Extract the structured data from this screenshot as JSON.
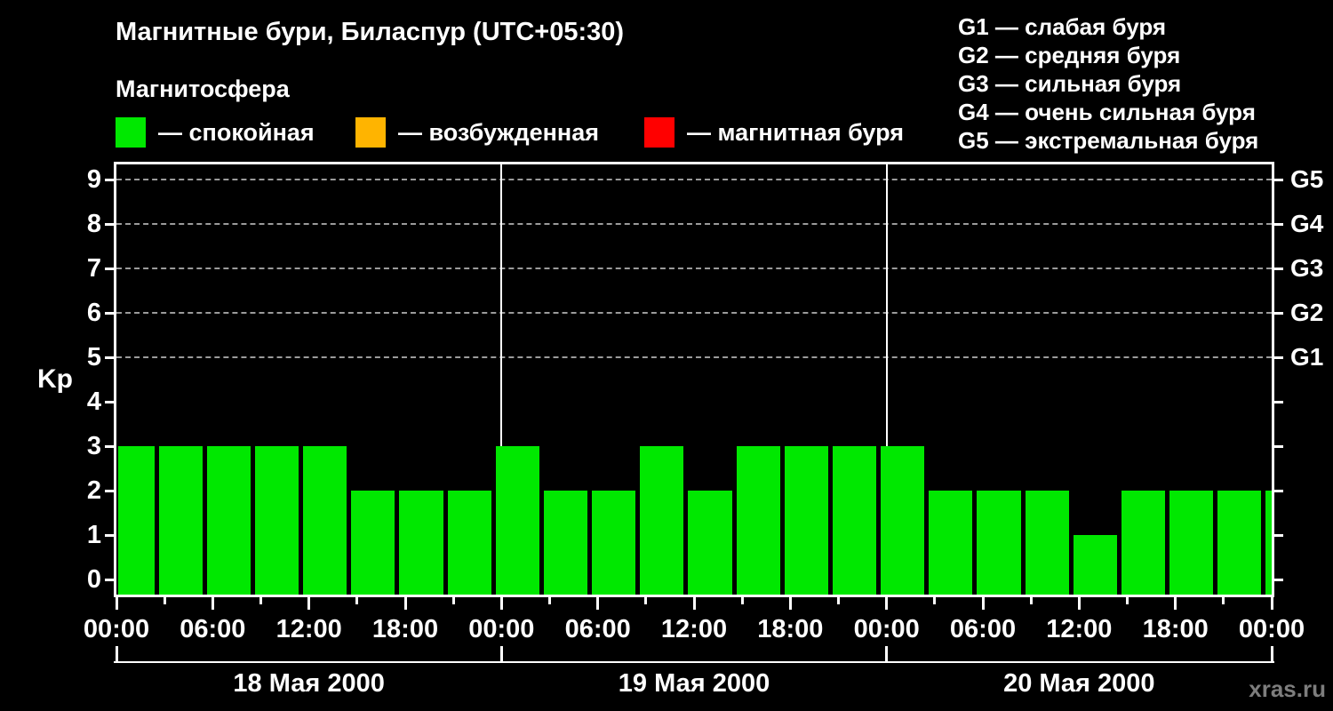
{
  "header": {
    "title": "Магнитные бури, Биласпур (UTC+05:30)",
    "subtitle": "Магнитосфера",
    "legend": [
      {
        "name": "quiet",
        "color": "#00e800",
        "label": "— спокойная"
      },
      {
        "name": "unsettled",
        "color": "#ffb400",
        "label": "— возбужденная"
      },
      {
        "name": "storm",
        "color": "#ff0000",
        "label": "— магнитная буря"
      }
    ],
    "storm_scale": [
      "G1 — слабая буря",
      "G2 — средняя буря",
      "G3 — сильная буря",
      "G4 — очень сильная буря",
      "G5 — экстремальная буря"
    ]
  },
  "watermark": "xras.ru",
  "chart_data": {
    "type": "bar",
    "title": "Магнитные бури, Биласпур (UTC+05:30)",
    "ylabel": "Kp",
    "ylim": [
      0,
      9
    ],
    "total_hours": 72,
    "bar_color": "#00e800",
    "grid": "dashed horizontal at Kp 5-9",
    "y_ticks": [
      0,
      1,
      2,
      3,
      4,
      5,
      6,
      7,
      8,
      9
    ],
    "grid_kp": [
      5,
      6,
      7,
      8,
      9
    ],
    "right_axis_labels": [
      {
        "kp": 5,
        "label": "G1"
      },
      {
        "kp": 6,
        "label": "G2"
      },
      {
        "kp": 7,
        "label": "G3"
      },
      {
        "kp": 8,
        "label": "G4"
      },
      {
        "kp": 9,
        "label": "G5"
      }
    ],
    "x_labeled_ticks": [
      {
        "hour": 0,
        "label": "00:00"
      },
      {
        "hour": 6,
        "label": "06:00"
      },
      {
        "hour": 12,
        "label": "12:00"
      },
      {
        "hour": 18,
        "label": "18:00"
      },
      {
        "hour": 24,
        "label": "00:00"
      },
      {
        "hour": 30,
        "label": "06:00"
      },
      {
        "hour": 36,
        "label": "12:00"
      },
      {
        "hour": 42,
        "label": "18:00"
      },
      {
        "hour": 48,
        "label": "00:00"
      },
      {
        "hour": 54,
        "label": "06:00"
      },
      {
        "hour": 60,
        "label": "12:00"
      },
      {
        "hour": 66,
        "label": "18:00"
      },
      {
        "hour": 72,
        "label": "00:00"
      }
    ],
    "x_minor_tick_hours": [
      3,
      9,
      15,
      21,
      27,
      33,
      39,
      45,
      51,
      57,
      63,
      69
    ],
    "days": [
      {
        "label": "18 Мая 2000",
        "start_hour": 0,
        "end_hour": 24
      },
      {
        "label": "19 Мая 2000",
        "start_hour": 24,
        "end_hour": 48
      },
      {
        "label": "20 Мая 2000",
        "start_hour": 48,
        "end_hour": 72
      }
    ],
    "day_boundary_hours": [
      0,
      24,
      48,
      72
    ],
    "bars": [
      {
        "start": 0,
        "end": 2.5,
        "kp": 3
      },
      {
        "start": 2.5,
        "end": 5.5,
        "kp": 3
      },
      {
        "start": 5.5,
        "end": 8.5,
        "kp": 3
      },
      {
        "start": 8.5,
        "end": 11.5,
        "kp": 3
      },
      {
        "start": 11.5,
        "end": 14.5,
        "kp": 3
      },
      {
        "start": 14.5,
        "end": 17.5,
        "kp": 2
      },
      {
        "start": 17.5,
        "end": 20.5,
        "kp": 2
      },
      {
        "start": 20.5,
        "end": 23.5,
        "kp": 2
      },
      {
        "start": 23.5,
        "end": 26.5,
        "kp": 3
      },
      {
        "start": 26.5,
        "end": 29.5,
        "kp": 2
      },
      {
        "start": 29.5,
        "end": 32.5,
        "kp": 2
      },
      {
        "start": 32.5,
        "end": 35.5,
        "kp": 3
      },
      {
        "start": 35.5,
        "end": 38.5,
        "kp": 2
      },
      {
        "start": 38.5,
        "end": 41.5,
        "kp": 3
      },
      {
        "start": 41.5,
        "end": 44.5,
        "kp": 3
      },
      {
        "start": 44.5,
        "end": 47.5,
        "kp": 3
      },
      {
        "start": 47.5,
        "end": 50.5,
        "kp": 3
      },
      {
        "start": 50.5,
        "end": 53.5,
        "kp": 2
      },
      {
        "start": 53.5,
        "end": 56.5,
        "kp": 2
      },
      {
        "start": 56.5,
        "end": 59.5,
        "kp": 2
      },
      {
        "start": 59.5,
        "end": 62.5,
        "kp": 1
      },
      {
        "start": 62.5,
        "end": 65.5,
        "kp": 2
      },
      {
        "start": 65.5,
        "end": 68.5,
        "kp": 2
      },
      {
        "start": 68.5,
        "end": 71.5,
        "kp": 2
      },
      {
        "start": 71.5,
        "end": 72,
        "kp": 2
      }
    ]
  }
}
